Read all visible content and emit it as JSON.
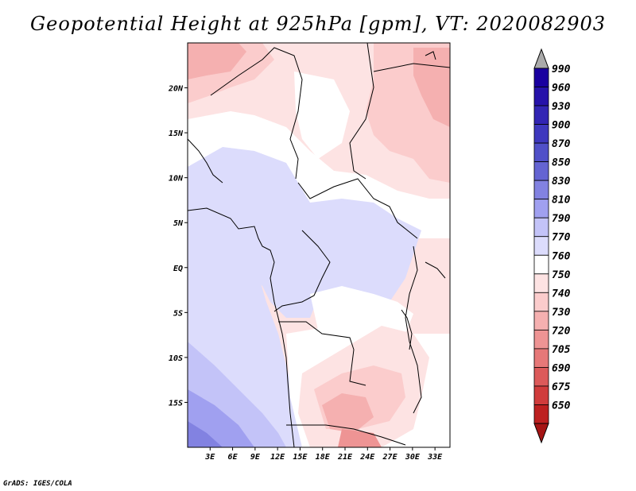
{
  "title": "Geopotential Height at 925hPa [gpm], VT: 2020082903",
  "footer": "GrADS: IGES/COLA",
  "map": {
    "lon_range": [
      0,
      35
    ],
    "lat_range": [
      -20,
      25
    ],
    "lon_ticks": [
      {
        "value": 3,
        "label": "3E"
      },
      {
        "value": 6,
        "label": "6E"
      },
      {
        "value": 9,
        "label": "9E"
      },
      {
        "value": 12,
        "label": "12E"
      },
      {
        "value": 15,
        "label": "15E"
      },
      {
        "value": 18,
        "label": "18E"
      },
      {
        "value": 21,
        "label": "21E"
      },
      {
        "value": 24,
        "label": "24E"
      },
      {
        "value": 27,
        "label": "27E"
      },
      {
        "value": 30,
        "label": "30E"
      },
      {
        "value": 33,
        "label": "33E"
      }
    ],
    "lat_ticks": [
      {
        "value": 20,
        "label": "20N"
      },
      {
        "value": 15,
        "label": "15N"
      },
      {
        "value": 10,
        "label": "10N"
      },
      {
        "value": 5,
        "label": "5N"
      },
      {
        "value": 0,
        "label": "EQ"
      },
      {
        "value": -5,
        "label": "5S"
      },
      {
        "value": -10,
        "label": "10S"
      },
      {
        "value": -15,
        "label": "15S"
      }
    ]
  },
  "colorbar": {
    "levels": [
      {
        "label": "990",
        "color": "#1a00a0"
      },
      {
        "label": "960",
        "color": "#2612aa"
      },
      {
        "label": "930",
        "color": "#3225b4"
      },
      {
        "label": "900",
        "color": "#3e38be"
      },
      {
        "label": "870",
        "color": "#5050c8"
      },
      {
        "label": "850",
        "color": "#6464d2"
      },
      {
        "label": "830",
        "color": "#8282e1"
      },
      {
        "label": "810",
        "color": "#a0a0f0"
      },
      {
        "label": "790",
        "color": "#c3c3f8"
      },
      {
        "label": "770",
        "color": "#dcdcfc"
      },
      {
        "label": "760",
        "color": "#ffffff"
      },
      {
        "label": "750",
        "color": "#fde3e3"
      },
      {
        "label": "740",
        "color": "#fbcccc"
      },
      {
        "label": "730",
        "color": "#f5b0b0"
      },
      {
        "label": "720",
        "color": "#ee9494"
      },
      {
        "label": "705",
        "color": "#e67878"
      },
      {
        "label": "690",
        "color": "#dc5a5a"
      },
      {
        "label": "675",
        "color": "#d03c3c"
      },
      {
        "label": "650",
        "color": "#bd2020"
      }
    ],
    "top_triangle_color": "#aaaaaa",
    "bottom_triangle_color": "#a51414"
  }
}
